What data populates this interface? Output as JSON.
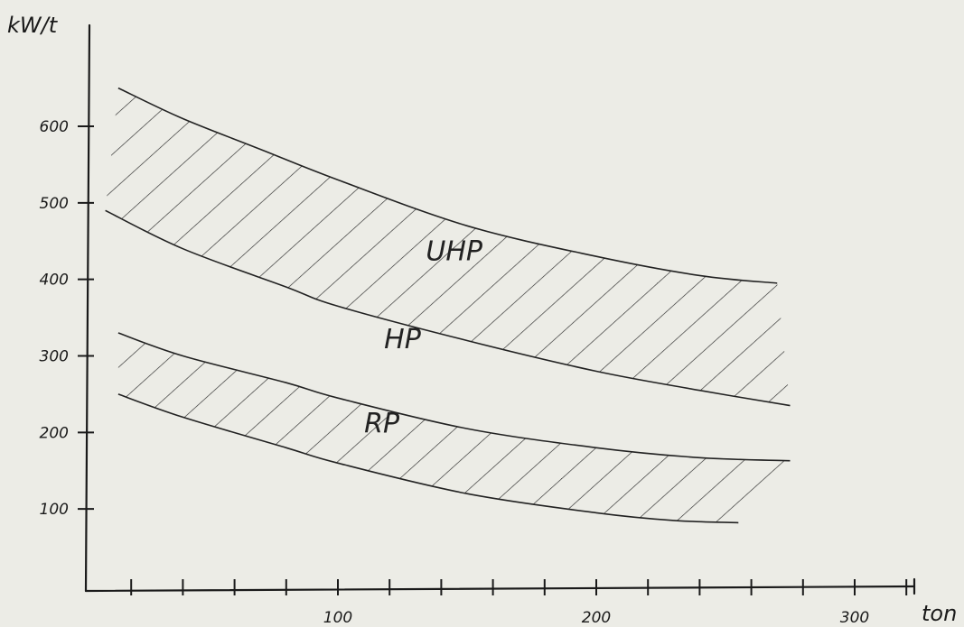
{
  "chart_data": {
    "type": "area",
    "xlabel": "ton",
    "ylabel": "kW/t",
    "xlim": [
      0,
      330
    ],
    "ylim": [
      0,
      700
    ],
    "x_ticks": [
      20,
      40,
      60,
      80,
      100,
      120,
      140,
      160,
      180,
      200,
      220,
      240,
      260,
      280,
      300,
      320
    ],
    "x_tick_labels": [
      {
        "value": 100,
        "label": "100"
      },
      {
        "value": 200,
        "label": "200"
      },
      {
        "value": 300,
        "label": "300"
      }
    ],
    "y_ticks": [
      100,
      200,
      300,
      400,
      500,
      600
    ],
    "y_tick_labels": [
      {
        "value": 100,
        "label": "100"
      },
      {
        "value": 200,
        "label": "200"
      },
      {
        "value": 300,
        "label": "300"
      },
      {
        "value": 400,
        "label": "400"
      },
      {
        "value": 500,
        "label": "500"
      },
      {
        "value": 600,
        "label": "600"
      }
    ],
    "bands": [
      {
        "name": "UHP",
        "upper": [
          [
            15,
            650
          ],
          [
            40,
            610
          ],
          [
            70,
            570
          ],
          [
            100,
            530
          ],
          [
            150,
            470
          ],
          [
            200,
            430
          ],
          [
            240,
            405
          ],
          [
            270,
            395
          ]
        ],
        "lower": [
          [
            10,
            490
          ],
          [
            40,
            440
          ],
          [
            80,
            390
          ],
          [
            100,
            365
          ],
          [
            150,
            320
          ],
          [
            200,
            280
          ],
          [
            240,
            255
          ],
          [
            275,
            235
          ]
        ],
        "label_pos": [
          145,
          425
        ]
      },
      {
        "name": "RP",
        "upper": [
          [
            15,
            330
          ],
          [
            40,
            300
          ],
          [
            80,
            265
          ],
          [
            100,
            245
          ],
          [
            150,
            205
          ],
          [
            200,
            180
          ],
          [
            240,
            167
          ],
          [
            275,
            163
          ]
        ],
        "lower": [
          [
            15,
            250
          ],
          [
            40,
            220
          ],
          [
            80,
            180
          ],
          [
            100,
            160
          ],
          [
            150,
            120
          ],
          [
            200,
            95
          ],
          [
            230,
            85
          ],
          [
            255,
            82
          ]
        ],
        "label_pos": [
          117,
          200
        ]
      }
    ],
    "annotations": [
      {
        "text": "HP",
        "x": 125,
        "y": 310
      }
    ],
    "grid": false
  }
}
